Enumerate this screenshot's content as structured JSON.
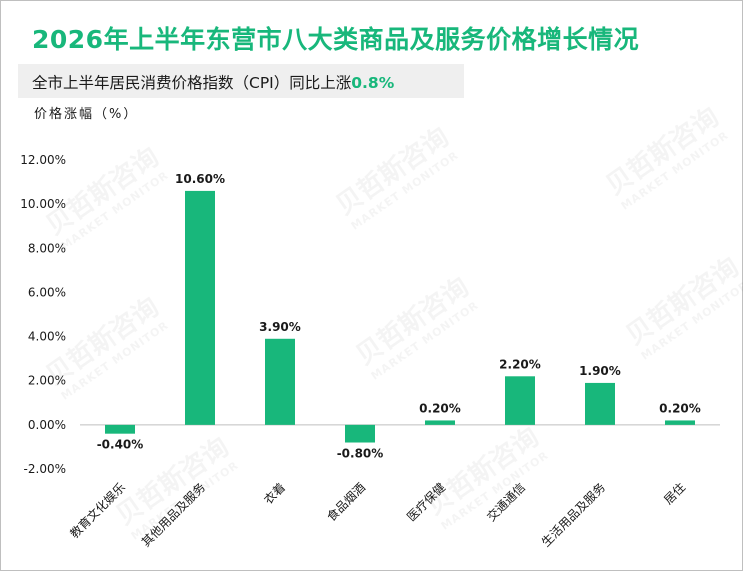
{
  "title": "2026年上半年东营市八大类商品及服务价格增长情况",
  "subtitle": {
    "prefix": "全市上半年居民消费价格指数（CPI）同比上涨",
    "highlight": "0.8%"
  },
  "unit_label": "价格涨幅（%）",
  "watermark": {
    "cn": "贝哲斯咨询",
    "en": "MARKET MONITOR"
  },
  "colors": {
    "bar": "#18b77b",
    "accent": "#18b77b"
  },
  "chart_data": {
    "type": "bar",
    "categories": [
      "教育文化娱乐",
      "其他用品及服务",
      "衣着",
      "食品烟酒",
      "医疗保健",
      "交通通信",
      "生活用品及服务",
      "居住"
    ],
    "values": [
      -0.4,
      10.6,
      3.9,
      -0.8,
      0.2,
      2.2,
      1.9,
      0.2
    ],
    "data_labels": [
      "-0.40%",
      "10.60%",
      "3.90%",
      "-0.80%",
      "0.20%",
      "2.20%",
      "1.90%",
      "0.20%"
    ],
    "ylim": [
      -2,
      12
    ],
    "yticks": [
      -2,
      0,
      2,
      4,
      6,
      8,
      10,
      12
    ],
    "ytick_labels": [
      "-2.00%",
      "0.00%",
      "2.00%",
      "4.00%",
      "6.00%",
      "8.00%",
      "10.00%",
      "12.00%"
    ],
    "xlabel": "",
    "ylabel": "价格涨幅（%）",
    "grid": false,
    "legend": "none"
  }
}
